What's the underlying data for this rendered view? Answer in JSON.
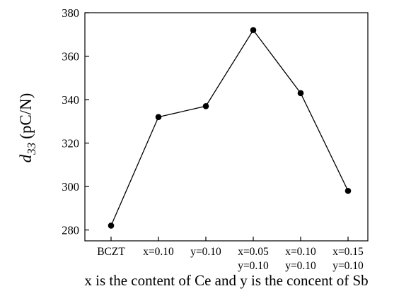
{
  "chart_data": {
    "type": "line",
    "categories": [
      [
        "BCZT"
      ],
      [
        "x=0.10"
      ],
      [
        "y=0.10"
      ],
      [
        "x=0.05",
        "y=0.10"
      ],
      [
        "x=0.10",
        "y=0.10"
      ],
      [
        "x=0.15",
        "y=0.10"
      ]
    ],
    "series": [
      {
        "values": [
          282,
          332,
          337,
          372,
          343,
          298
        ]
      }
    ],
    "ylabel_main": "d",
    "ylabel_sub": "33",
    "ylabel_unit": "(pC/N)",
    "xlabel": "x is the content of Ce and y is the concent of Sb",
    "ylim": [
      275,
      380
    ],
    "yticks": [
      280,
      300,
      320,
      340,
      360,
      380
    ],
    "grid": false,
    "legend": "none",
    "colors": {
      "line": "#000000",
      "marker": "#000000"
    }
  }
}
